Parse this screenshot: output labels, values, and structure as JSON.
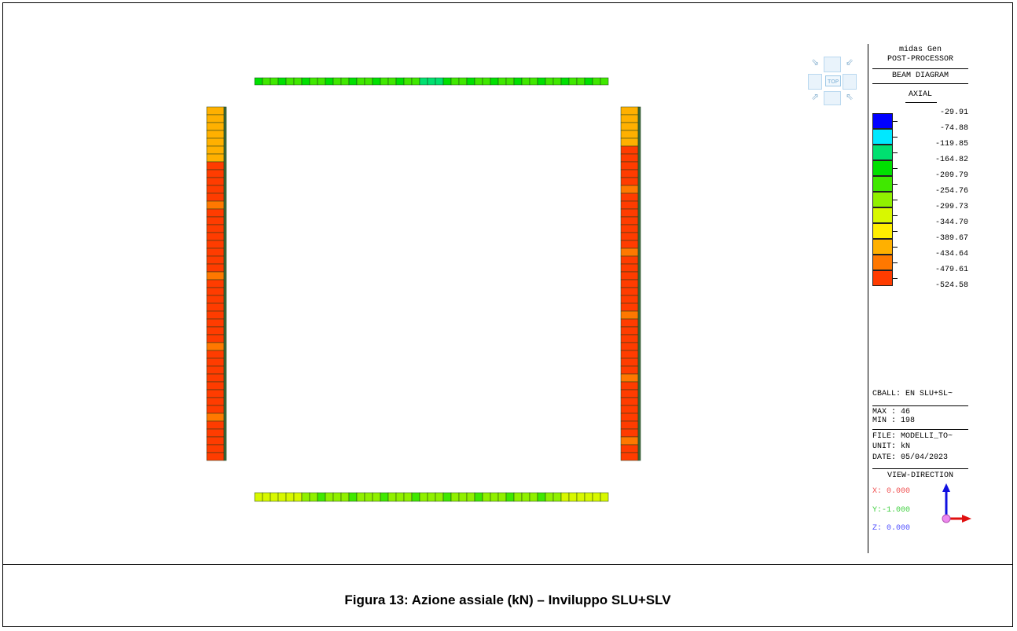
{
  "colors": {
    "blue": "#0000ff",
    "cyan": "#00e8ff",
    "green_teal": "#00e070",
    "green": "#00e000",
    "green_light": "#40e800",
    "lime": "#90f000",
    "yellow_green": "#d8f800",
    "yellow": "#ffee00",
    "orange_light": "#ffb000",
    "orange": "#ff7800",
    "red_orange": "#ff3c00",
    "frame": "#000000"
  },
  "view_cube": {
    "top_label": "TOP",
    "icon": "view-cube-icon"
  },
  "legend": {
    "app_name": "midas Gen",
    "module": "POST-PROCESSOR",
    "diagram": "BEAM DIAGRAM",
    "component": "AXIAL",
    "scale_values": [
      "-29.91",
      "-74.88",
      "-119.85",
      "-164.82",
      "-209.79",
      "-254.76",
      "-299.73",
      "-344.70",
      "-389.67",
      "-434.64",
      "-479.61",
      "-524.58"
    ],
    "scale_colors": [
      "#0000ff",
      "#00e8ff",
      "#00e070",
      "#00e000",
      "#40e800",
      "#90f000",
      "#d8f800",
      "#ffee00",
      "#ffb000",
      "#ff7800",
      "#ff3c00"
    ],
    "combination": "CBALL: EN SLU+SL~",
    "max": "MAX : 46",
    "min": "MIN : 198",
    "file": "FILE: MODELLI_TO~",
    "unit": "UNIT: kN",
    "date": "DATE: 05/04/2023",
    "view_direction": "VIEW-DIRECTION",
    "x": "X: 0.000",
    "y": "Y:-1.000",
    "z": "Z: 0.000"
  },
  "caption": "Figura 13: Azione assiale (kN) – Inviluppo SLU+SLV"
}
